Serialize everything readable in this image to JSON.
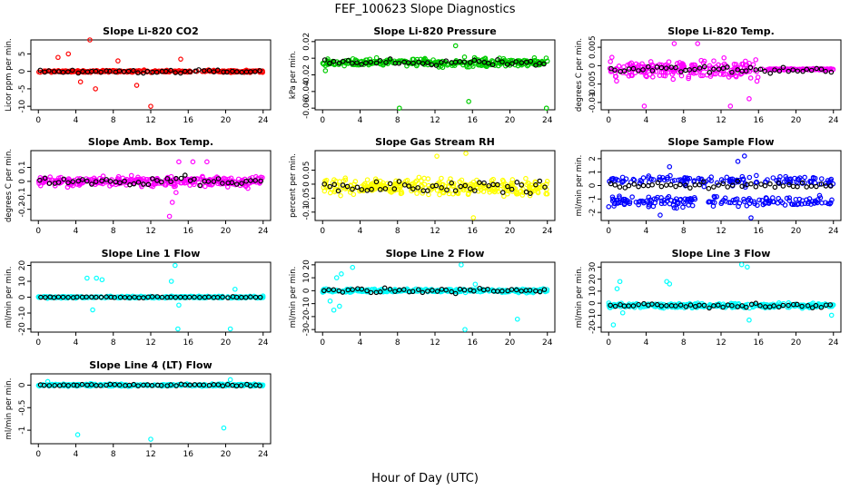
{
  "figure": {
    "title": "FEF_100623  Slope Diagnostics",
    "xlabel": "Hour of Day (UTC)"
  },
  "chart_data": [
    {
      "type": "scatter",
      "title": "Slope Li-820 CO2",
      "ylabel": "Licor ppm per min.",
      "color": "#ff0000",
      "xlim": [
        -0.8,
        24.8
      ],
      "ylim": [
        -11,
        9
      ],
      "yticks": [
        -10,
        -5,
        0,
        5
      ],
      "xticks": [
        0,
        4,
        8,
        12,
        16,
        20,
        24
      ],
      "center": 0,
      "noise": 0.5,
      "spikes": [
        [
          2.1,
          4
        ],
        [
          3.2,
          5
        ],
        [
          4.5,
          -3
        ],
        [
          5.5,
          9
        ],
        [
          6.1,
          -5
        ],
        [
          12.0,
          -10
        ],
        [
          15.2,
          3.5
        ],
        [
          8.5,
          3
        ],
        [
          10.5,
          -4
        ]
      ],
      "black_spread": 0.8
    },
    {
      "type": "scatter",
      "title": "Slope Li-820 Pressure",
      "ylabel": "kPa per min.",
      "color": "#00cc00",
      "xlim": [
        -0.8,
        24.8
      ],
      "ylim": [
        -0.062,
        0.022
      ],
      "yticks": [
        -0.06,
        -0.04,
        -0.02,
        0.0,
        0.02
      ],
      "xticks": [
        0,
        4,
        8,
        12,
        16,
        20,
        24
      ],
      "center": -0.005,
      "noise": 0.008,
      "spikes": [
        [
          8.2,
          -0.06
        ],
        [
          23.9,
          -0.06
        ],
        [
          15.6,
          -0.052
        ],
        [
          0.3,
          -0.015
        ],
        [
          14.2,
          0.015
        ]
      ],
      "black_spread": 0.006
    },
    {
      "type": "scatter",
      "title": "Slope Li-820 Temp.",
      "ylabel": "degrees C per min.",
      "color": "#ff00ff",
      "xlim": [
        -0.8,
        24.8
      ],
      "ylim": [
        -0.012,
        0.007
      ],
      "yticks": [
        -0.01,
        -0.005,
        0.0,
        0.005
      ],
      "xticks": [
        0,
        4,
        8,
        12,
        16,
        20,
        24
      ],
      "center": -0.001,
      "noise": 0.004,
      "spikes": [
        [
          3.8,
          -0.011
        ],
        [
          7.0,
          0.006
        ],
        [
          13.0,
          -0.011
        ],
        [
          9.5,
          0.006
        ],
        [
          15.0,
          -0.009
        ]
      ],
      "black_spread": 0.002,
      "quiet_after": 16
    },
    {
      "type": "scatter",
      "title": "Slope Amb. Box Temp.",
      "ylabel": "degrees C per min.",
      "color": "#ff00ff",
      "xlim": [
        -0.8,
        24.8
      ],
      "ylim": [
        -0.28,
        0.22
      ],
      "yticks": [
        -0.2,
        -0.1,
        0.0,
        0.1
      ],
      "xticks": [
        0,
        4,
        8,
        12,
        16,
        20,
        24
      ],
      "center": 0.0,
      "noise": 0.06,
      "spikes": [
        [
          14.0,
          -0.25
        ],
        [
          14.3,
          -0.15
        ],
        [
          14.7,
          -0.08
        ],
        [
          15.0,
          0.14
        ],
        [
          16.5,
          0.14
        ],
        [
          18.0,
          0.14
        ]
      ],
      "black_spread": 0.05
    },
    {
      "type": "scatter",
      "title": "Slope Gas Stream RH",
      "ylabel": "percent per min.",
      "color": "#ffff00",
      "xlim": [
        -0.8,
        24.8
      ],
      "ylim": [
        -0.13,
        0.12
      ],
      "yticks": [
        -0.1,
        -0.05,
        0.0,
        0.05
      ],
      "xticks": [
        0,
        4,
        8,
        12,
        16,
        20,
        24
      ],
      "center": -0.01,
      "noise": 0.05,
      "spikes": [
        [
          15.3,
          0.11
        ],
        [
          16.1,
          -0.12
        ],
        [
          12.2,
          0.1
        ]
      ],
      "black_spread": 0.04
    },
    {
      "type": "scatter",
      "title": "Slope Sample Flow",
      "ylabel": "ml/min per min.",
      "color": "#0000ff",
      "xlim": [
        -0.8,
        24.8
      ],
      "ylim": [
        -2.6,
        2.6
      ],
      "yticks": [
        -2,
        -1,
        0,
        1,
        2
      ],
      "xticks": [
        0,
        4,
        8,
        12,
        16,
        20,
        24
      ],
      "center": 0.0,
      "noise": 0.6,
      "bands": [
        0.4,
        -1.2
      ],
      "spikes": [
        [
          14.5,
          2.2
        ],
        [
          13.8,
          1.8
        ],
        [
          15.2,
          -2.4
        ],
        [
          5.5,
          -2.2
        ],
        [
          6.5,
          1.4
        ]
      ],
      "black_spread": 0.4
    },
    {
      "type": "scatter",
      "title": "Slope Line 1 Flow",
      "ylabel": "ml/min per min.",
      "color": "#00ffff",
      "xlim": [
        -0.8,
        24.8
      ],
      "ylim": [
        -22,
        22
      ],
      "yticks": [
        -20,
        -10,
        0,
        10,
        20
      ],
      "xticks": [
        0,
        4,
        8,
        12,
        16,
        20,
        24
      ],
      "center": 0.0,
      "noise": 1.0,
      "spikes": [
        [
          5.2,
          12
        ],
        [
          6.2,
          12
        ],
        [
          6.8,
          11
        ],
        [
          14.2,
          10
        ],
        [
          14.6,
          20
        ],
        [
          15.0,
          -5
        ],
        [
          5.8,
          -8
        ],
        [
          20.5,
          -20
        ],
        [
          14.9,
          -20
        ],
        [
          21.0,
          5
        ]
      ],
      "black_spread": 0.5
    },
    {
      "type": "scatter",
      "title": "Slope Line 2 Flow",
      "ylabel": "ml/min per min.",
      "color": "#00ffff",
      "xlim": [
        -0.8,
        24.8
      ],
      "ylim": [
        -32,
        22
      ],
      "yticks": [
        -30,
        -20,
        -10,
        0,
        10,
        20
      ],
      "xticks": [
        0,
        4,
        8,
        12,
        16,
        20,
        24
      ],
      "center": 0.0,
      "noise": 2.0,
      "spikes": [
        [
          1.5,
          10
        ],
        [
          2.0,
          13
        ],
        [
          0.8,
          -8
        ],
        [
          1.2,
          -15
        ],
        [
          1.8,
          -12
        ],
        [
          14.8,
          20
        ],
        [
          15.2,
          -30
        ],
        [
          20.8,
          -22
        ],
        [
          3.2,
          18
        ],
        [
          16.3,
          5
        ]
      ],
      "black_spread": 3
    },
    {
      "type": "scatter",
      "title": "Slope Line 3 Flow",
      "ylabel": "ml/min per min.",
      "color": "#00ffff",
      "xlim": [
        -0.8,
        24.8
      ],
      "ylim": [
        -24,
        34
      ],
      "yticks": [
        -20,
        -10,
        0,
        10,
        20,
        30
      ],
      "xticks": [
        0,
        4,
        8,
        12,
        16,
        20,
        24
      ],
      "center": -2.0,
      "noise": 3.0,
      "spikes": [
        [
          1.2,
          18
        ],
        [
          0.9,
          12
        ],
        [
          0.5,
          -18
        ],
        [
          1.5,
          -8
        ],
        [
          6.2,
          18
        ],
        [
          6.5,
          16
        ],
        [
          14.2,
          32
        ],
        [
          14.8,
          30
        ],
        [
          15.0,
          -14
        ],
        [
          23.8,
          -10
        ]
      ],
      "black_spread": 3
    },
    {
      "type": "scatter",
      "title": "Slope Line 4 (LT) Flow",
      "ylabel": "ml/min per min.",
      "color": "#00ffff",
      "xlim": [
        -0.8,
        24.8
      ],
      "ylim": [
        -1.3,
        0.25
      ],
      "yticks": [
        -1.0,
        -0.5,
        0.0
      ],
      "xticks": [
        0,
        4,
        8,
        12,
        16,
        20,
        24
      ],
      "center": 0.0,
      "noise": 0.04,
      "spikes": [
        [
          4.2,
          -1.1
        ],
        [
          12.0,
          -1.2
        ],
        [
          19.8,
          -0.95
        ],
        [
          20.5,
          0.12
        ],
        [
          1.0,
          0.08
        ]
      ],
      "black_spread": 0.04
    }
  ]
}
